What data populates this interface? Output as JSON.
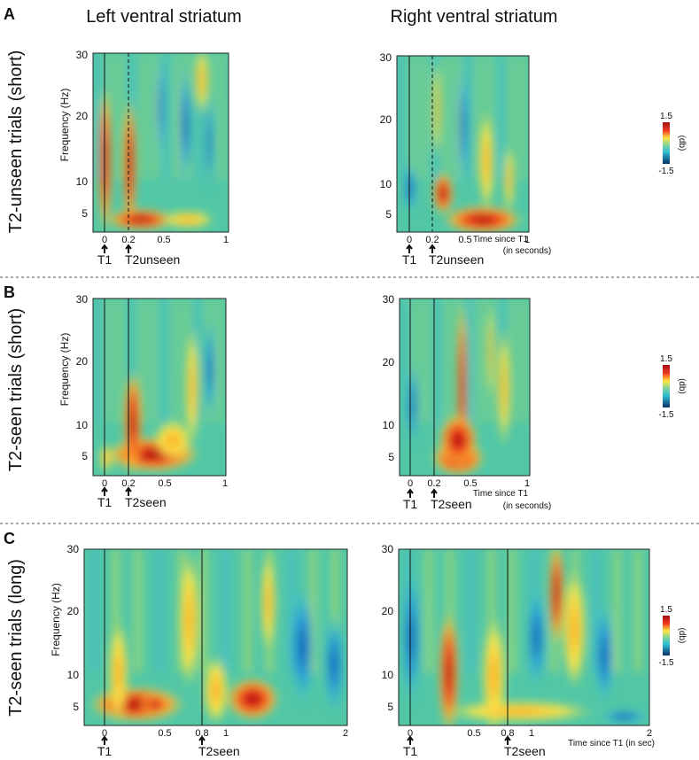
{
  "header": {
    "left_column": "Left ventral striatum",
    "right_column": "Right ventral striatum"
  },
  "panels": [
    {
      "letter": "A",
      "row_label": "T2-unseen trials (short)",
      "left": {
        "y_label": "Frequency (Hz)",
        "freq_ticks": [
          "30",
          "20",
          "10",
          "5"
        ],
        "time_ticks": [
          "0",
          "0.2",
          "0.5",
          "1"
        ],
        "events": [
          "T1",
          "T2unseen"
        ]
      },
      "right": {
        "freq_ticks": [
          "30",
          "20",
          "10",
          "5"
        ],
        "time_ticks": [
          "0",
          "0.2",
          "0.5",
          "1"
        ],
        "events": [
          "T1",
          "T2unseen"
        ],
        "time_label": [
          "Time since T1",
          "(in seconds)"
        ]
      },
      "colorbar": {
        "max": "1.5",
        "min": "-1.5",
        "unit": "(db)"
      }
    },
    {
      "letter": "B",
      "row_label": "T2-seen trials (short)",
      "left": {
        "y_label": "Frequency (Hz)",
        "freq_ticks": [
          "30",
          "20",
          "10",
          "5"
        ],
        "time_ticks": [
          "0",
          "0.2",
          "0.5",
          "1"
        ],
        "events": [
          "T1",
          "T2seen"
        ]
      },
      "right": {
        "freq_ticks": [
          "30",
          "20",
          "10",
          "5"
        ],
        "time_ticks": [
          "0",
          "0.2",
          "0.5",
          "1"
        ],
        "events": [
          "T1",
          "T2seen"
        ],
        "time_label": [
          "Time since T1",
          "(in seconds)"
        ]
      },
      "colorbar": {
        "max": "1.5",
        "min": "-1.5",
        "unit": "(db)"
      }
    },
    {
      "letter": "C",
      "row_label": "T2-seen trials (long)",
      "left": {
        "y_label": "Frequency (Hz)",
        "freq_ticks": [
          "30",
          "20",
          "10",
          "5"
        ],
        "time_ticks": [
          "0",
          "0.5",
          "0.8",
          "1",
          "2"
        ],
        "events": [
          "T1",
          "T2seen"
        ]
      },
      "right": {
        "freq_ticks": [
          "30",
          "20",
          "10",
          "5"
        ],
        "time_ticks": [
          "0",
          "0.5",
          "0.8",
          "1",
          "2"
        ],
        "events": [
          "T1",
          "T2seen"
        ],
        "time_label": [
          "Time since T1 (in sec)"
        ]
      },
      "colorbar": {
        "max": "1.5",
        "min": "-1.5",
        "unit": "(db)"
      }
    }
  ]
}
